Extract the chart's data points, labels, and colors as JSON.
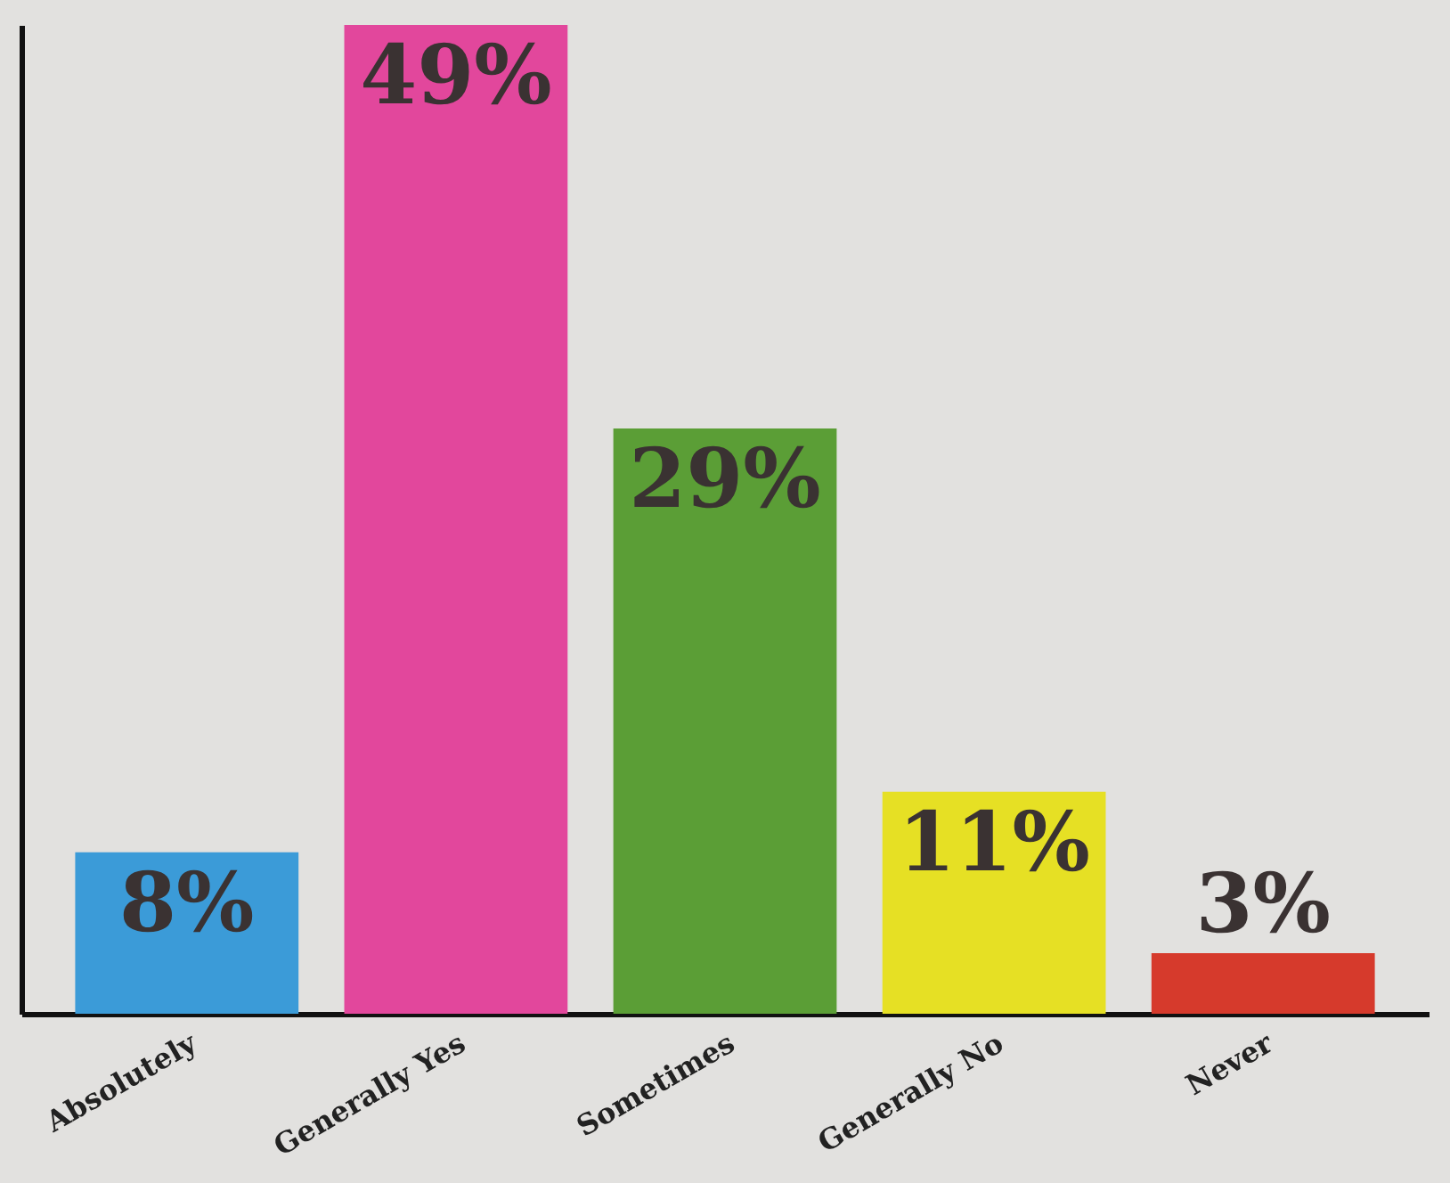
{
  "chart_data": {
    "type": "bar",
    "relative": false,
    "categories": [
      "Absolutely",
      "Generally Yes",
      "Sometimes",
      "Generally No",
      "Never"
    ],
    "values": [
      8,
      49,
      29,
      11,
      3
    ],
    "colors": [
      "#3b9bd8",
      "#e2479c",
      "#5b9e36",
      "#e6e024",
      "#d63a2c"
    ],
    "data_labels": true,
    "value_labels": [
      "8%",
      "49%",
      "29%",
      "11%",
      "3%"
    ]
  }
}
